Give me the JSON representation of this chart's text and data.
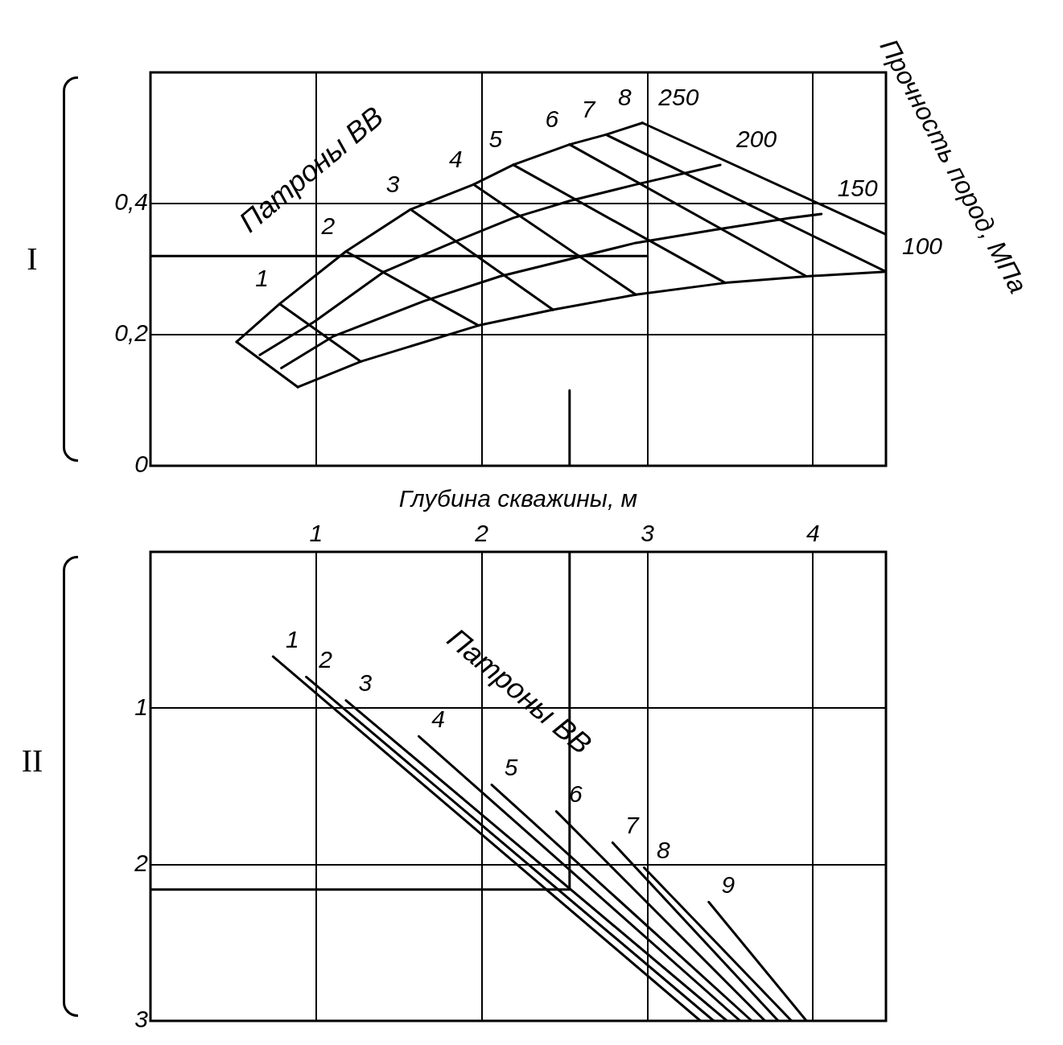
{
  "chart_data": [
    {
      "type": "line",
      "xlim": [
        0,
        4.44
      ],
      "xticks": [
        1,
        2,
        3,
        4
      ],
      "ylim": [
        0,
        0.6
      ],
      "yticks": [
        {
          "value": 0,
          "label": "0"
        },
        {
          "value": 0.2,
          "label": "0,2"
        },
        {
          "value": 0.4,
          "label": "0,4"
        }
      ],
      "tick_labels": "y",
      "grid": true,
      "legend": false,
      "marker": "none",
      "annotations": [
        "Патроны ВВ",
        "Прочность пород, МПа",
        "I"
      ],
      "series": [
        {
          "name": "250",
          "color": "#000000",
          "x": [
            0.52,
            0.78,
            1.18,
            1.57,
            1.95,
            2.19,
            2.53,
            2.75,
            2.97
          ],
          "values": [
            0.189,
            0.247,
            0.327,
            0.391,
            0.429,
            0.459,
            0.49,
            0.505,
            0.523
          ]
        },
        {
          "name": "200",
          "color": "#000000",
          "x": [
            0.66,
            0.99,
            1.41,
            1.82,
            2.19,
            2.53,
            2.93,
            3.44
          ],
          "values": [
            0.169,
            0.22,
            0.296,
            0.34,
            0.378,
            0.404,
            0.429,
            0.459
          ]
        },
        {
          "name": "150",
          "color": "#000000",
          "x": [
            0.79,
            1.1,
            1.65,
            2.11,
            2.93,
            3.41,
            3.86,
            4.05
          ],
          "values": [
            0.149,
            0.197,
            0.251,
            0.289,
            0.34,
            0.36,
            0.378,
            0.384
          ]
        },
        {
          "name": "100",
          "color": "#000000",
          "x": [
            0.89,
            1.27,
            1.98,
            2.43,
            2.93,
            3.47,
            3.96,
            4.44
          ],
          "values": [
            0.12,
            0.159,
            0.214,
            0.238,
            0.261,
            0.279,
            0.289,
            0.296
          ]
        },
        {
          "color": "#000000",
          "x": [
            0.52,
            0.89
          ],
          "values": [
            0.189,
            0.12
          ]
        },
        {
          "name": "1",
          "color": "#000000",
          "x": [
            0.78,
            1.27
          ],
          "values": [
            0.247,
            0.159
          ]
        },
        {
          "name": "2",
          "color": "#000000",
          "x": [
            1.18,
            1.98
          ],
          "values": [
            0.327,
            0.214
          ]
        },
        {
          "name": "3",
          "color": "#000000",
          "x": [
            1.57,
            2.43
          ],
          "values": [
            0.391,
            0.238
          ]
        },
        {
          "name": "4",
          "color": "#000000",
          "x": [
            1.95,
            2.93
          ],
          "values": [
            0.429,
            0.261
          ]
        },
        {
          "name": "5",
          "color": "#000000",
          "x": [
            2.19,
            3.47
          ],
          "values": [
            0.459,
            0.279
          ]
        },
        {
          "name": "6",
          "color": "#000000",
          "x": [
            2.53,
            3.96
          ],
          "values": [
            0.49,
            0.289
          ]
        },
        {
          "name": "7",
          "color": "#000000",
          "x": [
            2.75,
            4.44
          ],
          "values": [
            0.505,
            0.296
          ]
        },
        {
          "name": "8",
          "color": "#000000",
          "x": [
            2.97,
            4.44
          ],
          "values": [
            0.523,
            0.353
          ]
        },
        {
          "color": "#000000",
          "x": [
            0,
            3
          ],
          "values": [
            0.32,
            0.32
          ]
        },
        {
          "color": "#000000",
          "x": [
            2.53,
            2.53
          ],
          "values": [
            0.115,
            0
          ]
        }
      ]
    },
    {
      "type": "line",
      "xlim": [
        0,
        4.44
      ],
      "xticks": [
        1,
        2,
        3,
        4
      ],
      "xlabel": "Глубина скважины, м",
      "ylim": [
        3,
        0
      ],
      "yticks": [
        1,
        2,
        3
      ],
      "grid": true,
      "legend": false,
      "marker": "none",
      "annotations": [
        "Патроны ВВ",
        "II"
      ],
      "series": [
        {
          "name": "1",
          "color": "#000000",
          "x": [
            0.74,
            3.32
          ],
          "values": [
            0.67,
            3
          ]
        },
        {
          "name": "2",
          "color": "#000000",
          "x": [
            0.94,
            3.4
          ],
          "values": [
            0.8,
            3
          ]
        },
        {
          "name": "3",
          "color": "#000000",
          "x": [
            1.18,
            3.48
          ],
          "values": [
            0.95,
            3
          ]
        },
        {
          "name": "4",
          "color": "#000000",
          "x": [
            1.62,
            3.56
          ],
          "values": [
            1.18,
            3
          ]
        },
        {
          "name": "5",
          "color": "#000000",
          "x": [
            2.06,
            3.63
          ],
          "values": [
            1.49,
            3
          ]
        },
        {
          "name": "6",
          "color": "#000000",
          "x": [
            2.45,
            3.71
          ],
          "values": [
            1.66,
            3
          ]
        },
        {
          "name": "7",
          "color": "#000000",
          "x": [
            2.79,
            3.79
          ],
          "values": [
            1.86,
            3
          ]
        },
        {
          "name": "8",
          "color": "#000000",
          "x": [
            2.98,
            3.87
          ],
          "values": [
            2.02,
            3
          ]
        },
        {
          "name": "9",
          "color": "#000000",
          "x": [
            3.37,
            3.96
          ],
          "values": [
            2.24,
            3
          ]
        },
        {
          "color": "#000000",
          "x": [
            2.53,
            2.53,
            0
          ],
          "values": [
            0,
            2.16,
            2.16
          ]
        }
      ]
    }
  ]
}
